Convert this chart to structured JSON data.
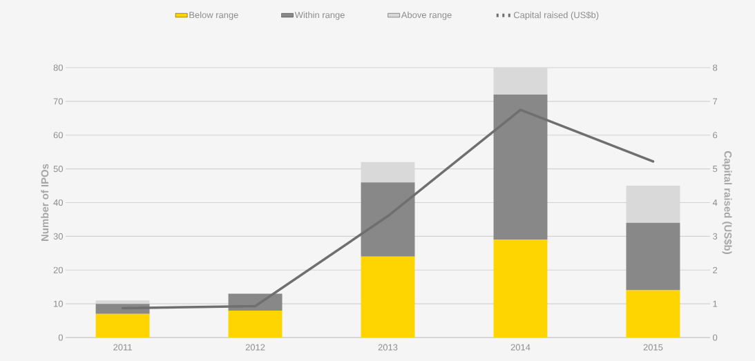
{
  "chart_data": {
    "type": "bar",
    "stacked": true,
    "categories": [
      "2011",
      "2012",
      "2013",
      "2014",
      "2015"
    ],
    "series": [
      {
        "name": "Below range",
        "color": "#ffd500",
        "values": [
          7,
          8,
          24,
          29,
          14
        ]
      },
      {
        "name": "Within range",
        "color": "#888888",
        "values": [
          3,
          5,
          22,
          43,
          20
        ]
      },
      {
        "name": "Above range",
        "color": "#d9d9d9",
        "values": [
          1,
          0,
          6,
          8,
          11
        ]
      },
      {
        "name": "Capital raised (US$b)",
        "type": "line",
        "axis": "y2",
        "color": "#6f6f6f",
        "values": [
          0.87,
          0.93,
          3.6,
          6.75,
          5.22
        ]
      }
    ],
    "ylabel": "Number of IPOs",
    "y2label": "Capital raised (US$b)",
    "ylim": [
      0,
      80
    ],
    "yticks": [
      0,
      10,
      20,
      30,
      40,
      50,
      60,
      70,
      80
    ],
    "y2lim": [
      0,
      8
    ],
    "y2ticks": [
      0,
      1,
      2,
      3,
      4,
      5,
      6,
      7,
      8
    ],
    "grid": "y",
    "legend": "top"
  }
}
